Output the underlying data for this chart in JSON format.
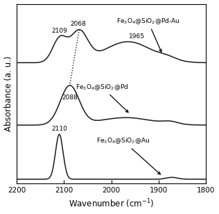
{
  "xlabel": "Wavenumber (cm$^{-1}$)",
  "ylabel": "Absorbance (a. u.)",
  "xlim": [
    2200,
    1800
  ],
  "label_PdAu": "Fe$_3$O$_4$@SiO$_2$@Pd-Au",
  "label_Pd": "Fe$_3$O$_4$@SiO$_2$@Pd",
  "label_Au": "Fe$_3$O$_4$@SiO$_2$@Au",
  "line_color": "#1a1a1a",
  "tick_label_size": 7.5,
  "axis_label_size": 8.5,
  "annotation_size": 6.5,
  "offsets": [
    1.55,
    0.72,
    0.0
  ],
  "lw": 1.1
}
